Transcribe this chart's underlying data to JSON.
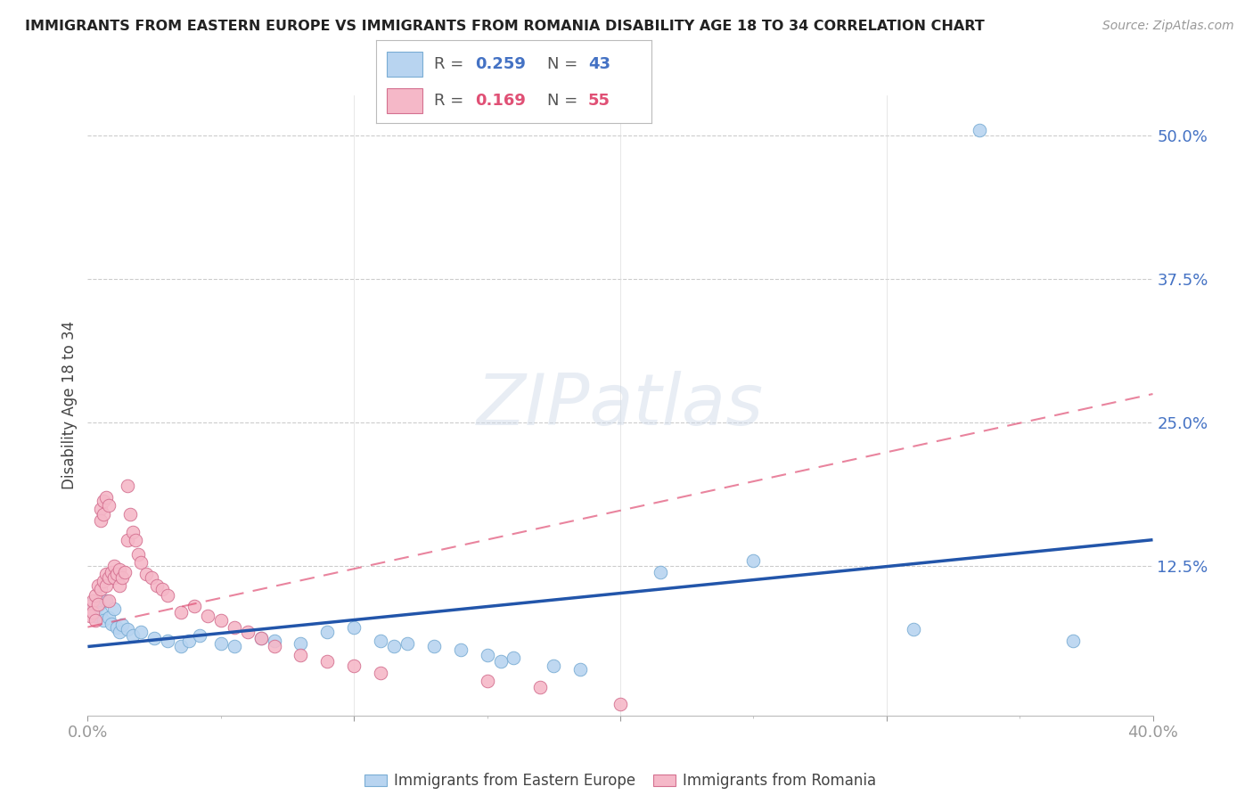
{
  "title": "IMMIGRANTS FROM EASTERN EUROPE VS IMMIGRANTS FROM ROMANIA DISABILITY AGE 18 TO 34 CORRELATION CHART",
  "source": "Source: ZipAtlas.com",
  "ylabel": "Disability Age 18 to 34",
  "xlim": [
    0.0,
    0.4
  ],
  "ylim": [
    -0.005,
    0.535
  ],
  "xtick_pos": [
    0.0,
    0.1,
    0.2,
    0.3,
    0.4
  ],
  "xtick_labels": [
    "0.0%",
    "",
    "",
    "",
    "40.0%"
  ],
  "ytick_labels": [
    "12.5%",
    "25.0%",
    "37.5%",
    "50.0%"
  ],
  "ytick_values": [
    0.125,
    0.25,
    0.375,
    0.5
  ],
  "watermark": "ZIPatlas",
  "blue_R": "0.259",
  "blue_N": "43",
  "pink_R": "0.169",
  "pink_N": "55",
  "blue_color": "#b8d4f0",
  "blue_edge": "#7aadd4",
  "blue_line_color": "#2255aa",
  "pink_color": "#f5b8c8",
  "pink_edge": "#d47090",
  "pink_line_color": "#e05075",
  "blue_line_x": [
    0.0,
    0.4
  ],
  "blue_line_y": [
    0.055,
    0.148
  ],
  "pink_line_x": [
    0.0,
    0.4
  ],
  "pink_line_y": [
    0.072,
    0.275
  ],
  "blue_dots": [
    [
      0.001,
      0.092
    ],
    [
      0.002,
      0.088
    ],
    [
      0.003,
      0.082
    ],
    [
      0.004,
      0.09
    ],
    [
      0.005,
      0.085
    ],
    [
      0.006,
      0.078
    ],
    [
      0.007,
      0.095
    ],
    [
      0.008,
      0.08
    ],
    [
      0.009,
      0.075
    ],
    [
      0.01,
      0.088
    ],
    [
      0.011,
      0.072
    ],
    [
      0.012,
      0.068
    ],
    [
      0.013,
      0.074
    ],
    [
      0.015,
      0.07
    ],
    [
      0.017,
      0.065
    ],
    [
      0.02,
      0.068
    ],
    [
      0.025,
      0.062
    ],
    [
      0.03,
      0.06
    ],
    [
      0.035,
      0.055
    ],
    [
      0.038,
      0.06
    ],
    [
      0.042,
      0.065
    ],
    [
      0.05,
      0.058
    ],
    [
      0.055,
      0.055
    ],
    [
      0.065,
      0.062
    ],
    [
      0.07,
      0.06
    ],
    [
      0.08,
      0.058
    ],
    [
      0.09,
      0.068
    ],
    [
      0.1,
      0.072
    ],
    [
      0.11,
      0.06
    ],
    [
      0.115,
      0.055
    ],
    [
      0.12,
      0.058
    ],
    [
      0.13,
      0.055
    ],
    [
      0.14,
      0.052
    ],
    [
      0.15,
      0.048
    ],
    [
      0.155,
      0.042
    ],
    [
      0.16,
      0.045
    ],
    [
      0.175,
      0.038
    ],
    [
      0.185,
      0.035
    ],
    [
      0.215,
      0.12
    ],
    [
      0.25,
      0.13
    ],
    [
      0.31,
      0.07
    ],
    [
      0.335,
      0.505
    ],
    [
      0.37,
      0.06
    ]
  ],
  "pink_dots": [
    [
      0.001,
      0.09
    ],
    [
      0.001,
      0.082
    ],
    [
      0.002,
      0.095
    ],
    [
      0.002,
      0.085
    ],
    [
      0.003,
      0.1
    ],
    [
      0.003,
      0.078
    ],
    [
      0.004,
      0.108
    ],
    [
      0.004,
      0.092
    ],
    [
      0.005,
      0.175
    ],
    [
      0.005,
      0.165
    ],
    [
      0.005,
      0.105
    ],
    [
      0.006,
      0.182
    ],
    [
      0.006,
      0.17
    ],
    [
      0.006,
      0.112
    ],
    [
      0.007,
      0.185
    ],
    [
      0.007,
      0.118
    ],
    [
      0.007,
      0.108
    ],
    [
      0.008,
      0.178
    ],
    [
      0.008,
      0.115
    ],
    [
      0.008,
      0.095
    ],
    [
      0.009,
      0.12
    ],
    [
      0.01,
      0.125
    ],
    [
      0.01,
      0.115
    ],
    [
      0.011,
      0.118
    ],
    [
      0.012,
      0.122
    ],
    [
      0.012,
      0.108
    ],
    [
      0.013,
      0.115
    ],
    [
      0.014,
      0.12
    ],
    [
      0.015,
      0.195
    ],
    [
      0.015,
      0.148
    ],
    [
      0.016,
      0.17
    ],
    [
      0.017,
      0.155
    ],
    [
      0.018,
      0.148
    ],
    [
      0.019,
      0.135
    ],
    [
      0.02,
      0.128
    ],
    [
      0.022,
      0.118
    ],
    [
      0.024,
      0.115
    ],
    [
      0.026,
      0.108
    ],
    [
      0.028,
      0.105
    ],
    [
      0.03,
      0.1
    ],
    [
      0.035,
      0.085
    ],
    [
      0.04,
      0.09
    ],
    [
      0.045,
      0.082
    ],
    [
      0.05,
      0.078
    ],
    [
      0.055,
      0.072
    ],
    [
      0.06,
      0.068
    ],
    [
      0.065,
      0.062
    ],
    [
      0.07,
      0.055
    ],
    [
      0.08,
      0.048
    ],
    [
      0.09,
      0.042
    ],
    [
      0.1,
      0.038
    ],
    [
      0.11,
      0.032
    ],
    [
      0.15,
      0.025
    ],
    [
      0.17,
      0.02
    ],
    [
      0.2,
      0.005
    ]
  ]
}
